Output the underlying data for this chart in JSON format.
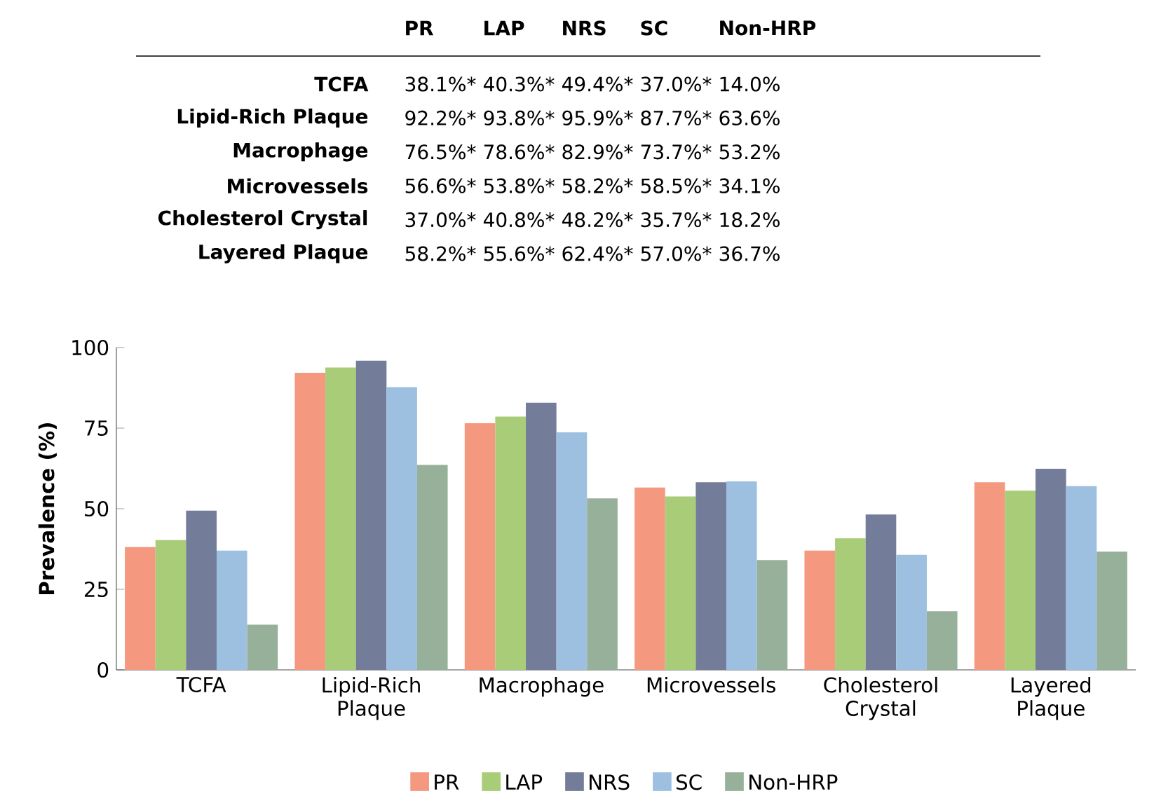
{
  "chart_data": {
    "type": "bar",
    "ylabel": "Prevalence (%)",
    "categories": [
      "TCFA",
      "Lipid-Rich Plaque",
      "Macrophage",
      "Microvessels",
      "Cholesterol Crystal",
      "Layered Plaque"
    ],
    "ylim": [
      0,
      100
    ],
    "yticks": [
      0,
      25,
      50,
      75,
      100
    ],
    "legend": "bottom",
    "series": [
      {
        "name": "PR",
        "color": "#f4987f",
        "values": [
          38.1,
          92.2,
          76.5,
          56.6,
          37.0,
          58.2
        ]
      },
      {
        "name": "LAP",
        "color": "#a9cc78",
        "values": [
          40.3,
          93.8,
          78.6,
          53.8,
          40.8,
          55.6
        ]
      },
      {
        "name": "NRS",
        "color": "#737c99",
        "values": [
          49.4,
          95.9,
          82.9,
          58.2,
          48.2,
          62.4
        ]
      },
      {
        "name": "SC",
        "color": "#9ec0e0",
        "values": [
          37.0,
          87.7,
          73.7,
          58.5,
          35.7,
          57.0
        ]
      },
      {
        "name": "Non-HRP",
        "color": "#97b09a",
        "values": [
          14.0,
          63.6,
          53.2,
          34.1,
          18.2,
          36.7
        ]
      }
    ],
    "annotations": [
      "38.1%*",
      "40.3%*",
      "49.4%*",
      "37.0%*",
      "14.0%",
      "92.2%*",
      "93.8%*",
      "95.9%*",
      "87.7%*",
      "63.6%",
      "76.5%*",
      "78.6%*",
      "82.9%*",
      "73.7%*",
      "53.2%",
      "56.6%*",
      "53.8%*",
      "58.2%*",
      "58.5%*",
      "34.1%",
      "37.0%*",
      "40.8%*",
      "48.2%*",
      "35.7%*",
      "18.2%",
      "58.2%*",
      "55.6%*",
      "62.4%*",
      "57.0%*",
      "36.7%"
    ]
  }
}
